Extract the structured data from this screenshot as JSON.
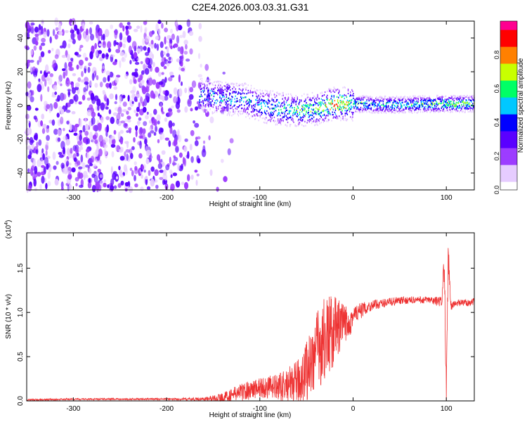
{
  "title": "C2E4.2026.003.03.31.G31",
  "chart_data": [
    {
      "type": "heatmap",
      "xlabel": "Height of straight line (km)",
      "ylabel": "Frequency (Hz)",
      "xlim": [
        -350,
        130
      ],
      "ylim": [
        -50,
        50
      ],
      "x_ticks": [
        -300,
        -200,
        -100,
        0,
        100
      ],
      "y_ticks": [
        -40,
        -20,
        0,
        20,
        40
      ],
      "x_tick_labels": [
        "-300",
        "-200",
        "-100",
        "0",
        "100"
      ],
      "y_tick_labels": [
        "-40",
        "-20",
        "0",
        "20",
        "40"
      ],
      "colorbar": {
        "label": "Normalized spectral amplitude",
        "range": [
          0.0,
          1.0
        ],
        "ticks": [
          0.0,
          0.2,
          0.4,
          0.6,
          0.8
        ],
        "tick_labels": [
          "0.0",
          "0.2",
          "0.4",
          "0.6",
          "0.8"
        ],
        "colors": [
          "#ffffff",
          "#e6ccff",
          "#9d3cff",
          "#5a00ff",
          "#0000ff",
          "#00c8ff",
          "#00ff66",
          "#c8ff00",
          "#ff8000",
          "#ff0000",
          "#ff0090"
        ]
      },
      "ridge": {
        "x": [
          -160,
          -140,
          -120,
          -100,
          -80,
          -60,
          -40,
          -20,
          0,
          20,
          40,
          60,
          80,
          100,
          130
        ],
        "frequency": [
          6,
          4,
          4,
          0,
          -2,
          -3,
          -2,
          1,
          1,
          0.5,
          0.5,
          0.5,
          1,
          1,
          1
        ],
        "amplitude": [
          0.45,
          0.45,
          0.45,
          0.45,
          0.5,
          0.55,
          0.55,
          0.75,
          0.6,
          0.5,
          0.5,
          0.5,
          0.55,
          0.6,
          0.6
        ]
      },
      "noise_region": {
        "x_range": [
          -350,
          -150
        ],
        "frequency_range": [
          -50,
          50
        ],
        "amplitude": 0.25
      }
    },
    {
      "type": "line",
      "xlabel": "Height of straight line (km)",
      "ylabel": "SNR (10 * v/v)",
      "y_multiplier_label": "(x10",
      "y_multiplier_exponent": "4",
      "y_multiplier_close": ")",
      "xlim": [
        -350,
        130
      ],
      "ylim": [
        0,
        1.9
      ],
      "x_ticks": [
        -300,
        -200,
        -100,
        0,
        100
      ],
      "y_ticks": [
        0.0,
        0.5,
        1.0,
        1.5
      ],
      "x_tick_labels": [
        "-300",
        "-200",
        "-100",
        "0",
        "100"
      ],
      "y_tick_labels": [
        "0.0",
        "0.5",
        "1.0",
        "1.5"
      ],
      "color": "#ee3333",
      "x": [
        -350,
        -300,
        -250,
        -200,
        -160,
        -140,
        -120,
        -100,
        -80,
        -60,
        -50,
        -40,
        -30,
        -20,
        -10,
        0,
        10,
        20,
        30,
        40,
        60,
        80,
        95,
        98,
        100,
        102,
        105,
        110,
        130
      ],
      "y": [
        0.01,
        0.02,
        0.02,
        0.02,
        0.02,
        0.04,
        0.1,
        0.15,
        0.15,
        0.2,
        0.35,
        0.55,
        0.7,
        0.8,
        0.85,
        0.95,
        1.03,
        1.08,
        1.1,
        1.12,
        1.14,
        1.14,
        1.12,
        1.6,
        0.0,
        1.7,
        1.08,
        1.1,
        1.12
      ],
      "noise_amplitude": [
        0.01,
        0.01,
        0.01,
        0.01,
        0.02,
        0.05,
        0.1,
        0.12,
        0.15,
        0.25,
        0.35,
        0.45,
        0.5,
        0.4,
        0.25,
        0.15,
        0.08,
        0.06,
        0.05,
        0.05,
        0.04,
        0.04,
        0.06,
        0.2,
        0.2,
        0.2,
        0.06,
        0.04,
        0.04
      ]
    }
  ]
}
